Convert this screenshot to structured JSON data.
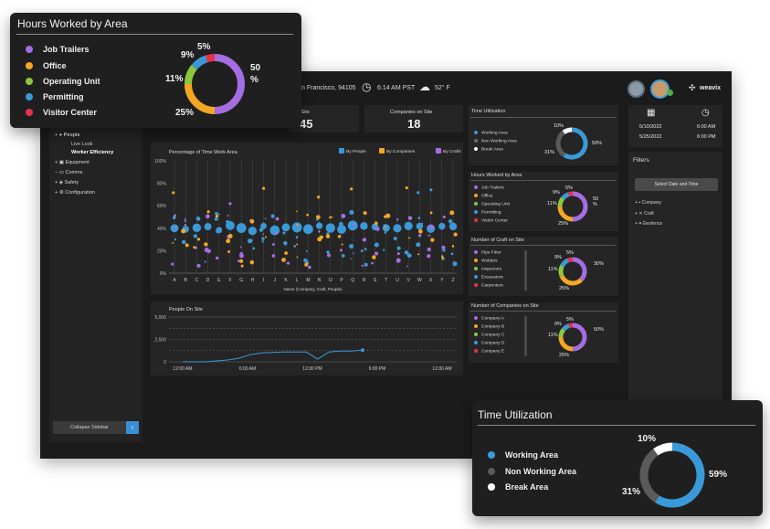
{
  "header": {
    "location": "n Francisco, 94105",
    "time": "6:14 AM PST",
    "weather": "52° F",
    "brand": "weavix"
  },
  "sidebar": {
    "items": [
      {
        "label": "People",
        "icon": "person-icon"
      },
      {
        "label": "Live Look",
        "sub": true
      },
      {
        "label": "Worker Efficiency",
        "sub": true,
        "active": true
      },
      {
        "label": "Equipment",
        "icon": "equipment-icon"
      },
      {
        "label": "Comms",
        "icon": "comms-icon"
      },
      {
        "label": "Safety",
        "icon": "shield-icon"
      },
      {
        "label": "Configuration",
        "icon": "gear-icon"
      }
    ],
    "collapse_label": "Collapse Sidebar"
  },
  "stats": {
    "on_site_label": "ts on Site",
    "on_site_value": "45",
    "companies_label": "Companies on Site",
    "companies_value": "18"
  },
  "dates": {
    "start_date": "5/10/2022",
    "end_date": "5/25/2022",
    "start_time": "6:00 AM",
    "end_time": "6:00 PM"
  },
  "filters": {
    "title": "Filters",
    "select_button": "Select Date and Time",
    "items": [
      "Company",
      "Craft",
      "Geofence"
    ]
  },
  "scatter": {
    "title": "Percentage of Time Work Area",
    "legend": [
      "By People",
      "By Companies",
      "By Crafts"
    ],
    "legend_colors": [
      "#3a9ad9",
      "#f5a623",
      "#a56de2"
    ],
    "xlabel": "Name (Company, Craft, People)"
  },
  "people_chart": {
    "title": "People On Site"
  },
  "mini_time": {
    "title": "Time Utilization",
    "legend": [
      "Working Area",
      "Non Working Area",
      "Break Area"
    ]
  },
  "mini_hours": {
    "title": "Hours Worked by Area",
    "legend": [
      "Job Trailers",
      "Office",
      "Operating Unit",
      "Permitting",
      "Visitor Center"
    ]
  },
  "mini_craft": {
    "title": "Number of Craft on Site",
    "legend": [
      "Pipe Fitter",
      "Welders",
      "Inspectors",
      "Excavators",
      "Carpenters"
    ],
    "pcts": [
      "5%",
      "9%",
      "30%",
      "11%",
      "25%"
    ]
  },
  "mini_companies": {
    "title": "Number of Companies on Site",
    "legend": [
      "Company A",
      "Company B",
      "Company C",
      "Company D",
      "Company E"
    ],
    "pcts": [
      "5%",
      "9%",
      "50%",
      "11%",
      "25%"
    ]
  },
  "hours_overlay": {
    "title": "Hours Worked by Area",
    "legend": [
      "Job Trailers",
      "Office",
      "Operating Unit",
      "Permitting",
      "Visitor Center"
    ],
    "colors": [
      "#a56de2",
      "#f5a623",
      "#8cc63f",
      "#3a9ad9",
      "#e8334a"
    ],
    "labels": [
      "5%",
      "9%",
      "11%",
      "25%",
      "50\n%"
    ]
  },
  "time_overlay": {
    "title": "Time Utilization",
    "legend": [
      "Working Area",
      "Non Working Area",
      "Break Area"
    ],
    "colors": [
      "#3a9ad9",
      "#5a5a5a",
      "#ffffff"
    ],
    "labels": [
      "10%",
      "59%",
      "31%"
    ]
  },
  "chart_data": [
    {
      "type": "pie",
      "title": "Hours Worked by Area",
      "categories": [
        "Job Trailers",
        "Office",
        "Operating Unit",
        "Permitting",
        "Visitor Center"
      ],
      "values": [
        50,
        25,
        11,
        9,
        5
      ],
      "colors": [
        "#a56de2",
        "#f5a623",
        "#8cc63f",
        "#3a9ad9",
        "#e8334a"
      ]
    },
    {
      "type": "pie",
      "title": "Time Utilization",
      "categories": [
        "Working Area",
        "Non Working Area",
        "Break Area"
      ],
      "values": [
        59,
        31,
        10
      ],
      "colors": [
        "#3a9ad9",
        "#5a5a5a",
        "#ffffff"
      ]
    },
    {
      "type": "pie",
      "title": "Number of Craft on Site",
      "categories": [
        "Pipe Fitter",
        "Welders",
        "Inspectors",
        "Excavators",
        "Carpenters"
      ],
      "values": [
        30,
        25,
        11,
        9,
        5
      ],
      "colors": [
        "#a56de2",
        "#f5a623",
        "#8cc63f",
        "#3a9ad9",
        "#e8334a"
      ]
    },
    {
      "type": "pie",
      "title": "Number of Companies on Site",
      "categories": [
        "Company A",
        "Company B",
        "Company C",
        "Company D",
        "Company E"
      ],
      "values": [
        50,
        25,
        11,
        9,
        5
      ],
      "colors": [
        "#a56de2",
        "#f5a623",
        "#8cc63f",
        "#3a9ad9",
        "#e8334a"
      ]
    },
    {
      "type": "line",
      "title": "People On Site",
      "x_ticks": [
        "12:00 AM",
        "6:00 AM",
        "12:00 PM",
        "6:00 PM",
        "12:00 AM"
      ],
      "y_ticks": [
        "5,000",
        "2,500",
        "0"
      ],
      "ylim": [
        0,
        5000
      ],
      "x": [
        0,
        1,
        2,
        3,
        4,
        5,
        6,
        7,
        8,
        9,
        10,
        11,
        12,
        13,
        14,
        15,
        16
      ],
      "values": [
        0,
        0,
        0,
        100,
        200,
        400,
        800,
        1000,
        1050,
        1100,
        1100,
        1100,
        300,
        1100,
        1200,
        1200,
        1300
      ]
    },
    {
      "type": "scatter",
      "title": "Percentage of Time Work Area",
      "categories": [
        "A",
        "B",
        "C",
        "D",
        "E",
        "F",
        "G",
        "H",
        "I",
        "J",
        "K",
        "L",
        "M",
        "N",
        "O",
        "P",
        "Q",
        "R",
        "S",
        "T",
        "U",
        "V",
        "W",
        "X",
        "Y",
        "Z"
      ],
      "y_ticks": [
        "100%",
        "80%",
        "60%",
        "40%",
        "20%",
        "0%"
      ],
      "ylim": [
        0,
        100
      ],
      "xlabel": "Name (Company, Craft, People)",
      "legend": [
        "By People",
        "By Companies",
        "By Crafts"
      ]
    }
  ]
}
